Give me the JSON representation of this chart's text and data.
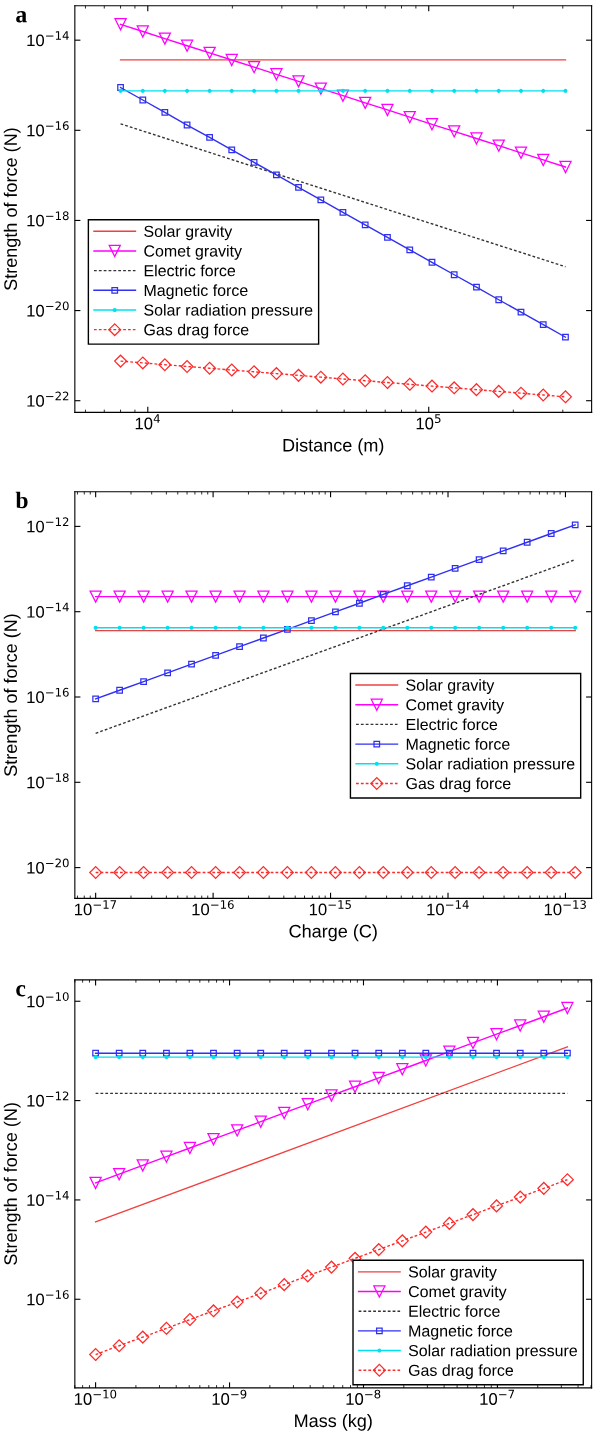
{
  "chart_data": [
    {
      "type": "line",
      "title": "a",
      "xlabel": "Distance (m)",
      "ylabel": "Strength of force (N)",
      "log": "xy",
      "legend": "lower left",
      "grid": false,
      "xlim": [
        5500,
        380000
      ],
      "ylim": [
        5.5e-23,
        5.8e-14
      ],
      "xticks": [
        {
          "value": 10000,
          "label": "10$^{4}$"
        },
        {
          "value": 100000,
          "label": "10$^{5}$"
        }
      ],
      "yticks": [
        {
          "value": 1e-22,
          "label": "10$^{−22}$"
        },
        {
          "value": 1e-20,
          "label": "10$^{−20}$"
        },
        {
          "value": 1e-18,
          "label": "10$^{−18}$"
        },
        {
          "value": 1e-16,
          "label": "10$^{−16}$"
        },
        {
          "value": 1e-14,
          "label": "10$^{−14}$"
        }
      ],
      "x": [
        8000,
        9600,
        11500,
        13800,
        16600,
        19900,
        23900,
        28700,
        34400,
        41300,
        49500,
        59400,
        71300,
        85600,
        102700,
        123200,
        147900,
        177500,
        213000,
        255600,
        306700
      ],
      "series": [
        {
          "name": "Solar gravity",
          "color": "#f04040",
          "marker": "none",
          "line_style": "solid",
          "x": [
            8000,
            306700
          ],
          "values": [
            3.66e-15,
            3.66e-15
          ]
        },
        {
          "name": "Comet gravity",
          "color": "#ff00ff",
          "marker": "triangle",
          "line_style": "solid",
          "values": [
            2.25e-14,
            1.56e-14,
            1.085e-14,
            7.53e-15,
            5.23e-15,
            3.63e-15,
            2.52e-15,
            1.75e-15,
            1.22e-15,
            8.44e-16,
            5.86e-16,
            4.07e-16,
            2.83e-16,
            1.96e-16,
            1.36e-16,
            9.47e-17,
            6.58e-17,
            4.57e-17,
            3.17e-17,
            2.2e-17,
            1.53e-17
          ]
        },
        {
          "name": "Electric force",
          "color": "#333333",
          "marker": "none",
          "line_style": "dotted",
          "x": [
            8000,
            306700
          ],
          "values": [
            1.39e-16,
            9.4e-20
          ]
        },
        {
          "name": "Magnetic force",
          "color": "#3030f0",
          "marker": "square",
          "line_style": "solid",
          "values": [
            8.9e-16,
            4.7e-16,
            2.49e-16,
            1.31e-16,
            6.94e-17,
            3.67e-17,
            1.94e-17,
            1.025e-17,
            5.42e-18,
            2.86e-18,
            1.51e-18,
            7.99e-19,
            4.22e-19,
            2.23e-19,
            1.18e-19,
            6.24e-20,
            3.3e-20,
            1.74e-20,
            9.21e-21,
            4.87e-21,
            2.57e-21
          ]
        },
        {
          "name": "Solar radiation pressure",
          "color": "#00e0f0",
          "marker": "circle",
          "line_style": "solid",
          "values": [
            7.5e-16,
            7.5e-16,
            7.5e-16,
            7.5e-16,
            7.5e-16,
            7.5e-16,
            7.5e-16,
            7.5e-16,
            7.5e-16,
            7.5e-16,
            7.5e-16,
            7.5e-16,
            7.5e-16,
            7.5e-16,
            7.5e-16,
            7.5e-16,
            7.5e-16,
            7.5e-16,
            7.5e-16,
            7.5e-16,
            7.5e-16
          ]
        },
        {
          "name": "Gas drag force",
          "color": "#ff2a2a",
          "marker": "diamond",
          "line_style": "dotted",
          "values": [
            7.56e-22,
            6.9e-22,
            6.3e-22,
            5.75e-22,
            5.25e-22,
            4.79e-22,
            4.38e-22,
            4e-22,
            3.65e-22,
            3.33e-22,
            3.04e-22,
            2.78e-22,
            2.53e-22,
            2.31e-22,
            2.11e-22,
            1.93e-22,
            1.76e-22,
            1.61e-22,
            1.47e-22,
            1.34e-22,
            1.22e-22
          ]
        }
      ]
    },
    {
      "type": "line",
      "title": "b",
      "xlabel": "Charge (C)",
      "ylabel": "Strength of force (N)",
      "log": "xy",
      "legend": "right",
      "grid": false,
      "xlim": [
        6.65e-18,
        1.67e-13
      ],
      "ylim": [
        1.9e-21,
        6.5e-12
      ],
      "xticks": [
        {
          "value": 1e-17,
          "label": "10$^{−17}$"
        },
        {
          "value": 1e-16,
          "label": "10$^{−16}$"
        },
        {
          "value": 1e-15,
          "label": "10$^{−15}$"
        },
        {
          "value": 1e-14,
          "label": "10$^{−14}$"
        },
        {
          "value": 1e-13,
          "label": "10$^{−13}$"
        }
      ],
      "yticks": [
        {
          "value": 1e-20,
          "label": "10$^{−20}$"
        },
        {
          "value": 1e-18,
          "label": "10$^{−18}$"
        },
        {
          "value": 1e-16,
          "label": "10$^{−16}$"
        },
        {
          "value": 1e-14,
          "label": "10$^{−14}$"
        },
        {
          "value": 1e-12,
          "label": "10$^{−12}$"
        }
      ],
      "x": [
        1e-17,
        1.6e-17,
        2.56e-17,
        4.1e-17,
        6.55e-17,
        1.05e-16,
        1.68e-16,
        2.68e-16,
        4.29e-16,
        6.87e-16,
        1.1e-15,
        1.76e-15,
        2.81e-15,
        4.5e-15,
        7.2e-15,
        1.15e-14,
        1.84e-14,
        2.95e-14,
        4.72e-14,
        7.56e-14,
        1.21e-13
      ],
      "series": [
        {
          "name": "Solar gravity",
          "color": "#f04040",
          "marker": "none",
          "line_style": "solid",
          "x": [
            1e-17,
            1.21e-13
          ],
          "values": [
            3.6e-15,
            3.6e-15
          ]
        },
        {
          "name": "Comet gravity",
          "color": "#ff00ff",
          "marker": "triangle",
          "line_style": "solid",
          "values": [
            2.26e-14,
            2.26e-14,
            2.26e-14,
            2.26e-14,
            2.26e-14,
            2.26e-14,
            2.26e-14,
            2.26e-14,
            2.26e-14,
            2.26e-14,
            2.26e-14,
            2.26e-14,
            2.26e-14,
            2.26e-14,
            2.26e-14,
            2.26e-14,
            2.26e-14,
            2.26e-14,
            2.26e-14,
            2.26e-14,
            2.26e-14
          ]
        },
        {
          "name": "Electric force",
          "color": "#333333",
          "marker": "none",
          "line_style": "dotted",
          "x": [
            1e-17,
            1.21e-13
          ],
          "values": [
            1.41e-17,
            1.66e-13
          ]
        },
        {
          "name": "Magnetic force",
          "color": "#3030f0",
          "marker": "square",
          "line_style": "solid",
          "values": [
            9e-17,
            1.44e-16,
            2.3e-16,
            3.69e-16,
            5.9e-16,
            9.44e-16,
            1.51e-15,
            2.42e-15,
            3.87e-15,
            6.19e-15,
            9.9e-15,
            1.58e-14,
            2.54e-14,
            4.06e-14,
            6.49e-14,
            1.04e-13,
            1.66e-13,
            2.66e-13,
            4.25e-13,
            6.81e-13,
            1.09e-12
          ]
        },
        {
          "name": "Solar radiation pressure",
          "color": "#00e0f0",
          "marker": "circle",
          "line_style": "solid",
          "values": [
            4.2e-15,
            4.2e-15,
            4.2e-15,
            4.2e-15,
            4.2e-15,
            4.2e-15,
            4.2e-15,
            4.2e-15,
            4.2e-15,
            4.2e-15,
            4.2e-15,
            4.2e-15,
            4.2e-15,
            4.2e-15,
            4.2e-15,
            4.2e-15,
            4.2e-15,
            4.2e-15,
            4.2e-15,
            4.2e-15,
            4.2e-15
          ]
        },
        {
          "name": "Gas drag force",
          "color": "#ff2a2a",
          "marker": "diamond",
          "line_style": "dotted",
          "values": [
            7.7e-21,
            7.7e-21,
            7.7e-21,
            7.7e-21,
            7.7e-21,
            7.7e-21,
            7.7e-21,
            7.7e-21,
            7.7e-21,
            7.7e-21,
            7.7e-21,
            7.7e-21,
            7.7e-21,
            7.7e-21,
            7.7e-21,
            7.7e-21,
            7.7e-21,
            7.7e-21,
            7.7e-21,
            7.7e-21,
            7.7e-21
          ]
        }
      ]
    },
    {
      "type": "line",
      "title": "c",
      "xlabel": "Mass (kg)",
      "ylabel": "Strength of force (N)",
      "log": "xy",
      "legend": "lower right",
      "grid": false,
      "xlim": [
        7e-11,
        5.05e-07
      ],
      "ylim": [
        1.64e-18,
        2.7e-10
      ],
      "xticks": [
        {
          "value": 1e-10,
          "label": "10$^{−10}$"
        },
        {
          "value": 1e-09,
          "label": "10$^{−9}$"
        },
        {
          "value": 1e-08,
          "label": "10$^{−8}$"
        },
        {
          "value": 1e-07,
          "label": "10$^{−7}$"
        }
      ],
      "yticks": [
        {
          "value": 1e-16,
          "label": "10$^{−16}$"
        },
        {
          "value": 1e-14,
          "label": "10$^{−14}$"
        },
        {
          "value": 1e-12,
          "label": "10$^{−12}$"
        },
        {
          "value": 1e-10,
          "label": "10$^{−10}$"
        }
      ],
      "x": [
        1e-10,
        1.5e-10,
        2.25e-10,
        3.38e-10,
        5.06e-10,
        7.59e-10,
        1.14e-09,
        1.71e-09,
        2.56e-09,
        3.84e-09,
        5.77e-09,
        8.65e-09,
        1.3e-08,
        1.95e-08,
        2.92e-08,
        4.38e-08,
        6.57e-08,
        9.85e-08,
        1.48e-07,
        2.22e-07,
        3.33e-07
      ],
      "series": [
        {
          "name": "Solar gravity",
          "color": "#f04040",
          "marker": "none",
          "line_style": "solid",
          "x": [
            1e-10,
            3.33e-07
          ],
          "values": [
            3.6e-15,
            1.21e-11
          ]
        },
        {
          "name": "Comet gravity",
          "color": "#ff00ff",
          "marker": "triangle",
          "line_style": "solid",
          "values": [
            2.2e-14,
            3.3e-14,
            4.95e-14,
            7.43e-14,
            1.11e-13,
            1.67e-13,
            2.51e-13,
            3.76e-13,
            5.64e-13,
            8.46e-13,
            1.27e-12,
            1.9e-12,
            2.86e-12,
            4.28e-12,
            6.42e-12,
            9.64e-12,
            1.45e-11,
            2.17e-11,
            3.25e-11,
            4.88e-11,
            7.32e-11
          ]
        },
        {
          "name": "Electric force",
          "color": "#333333",
          "marker": "none",
          "line_style": "dotted",
          "x": [
            1e-10,
            3.33e-07
          ],
          "values": [
            1.4e-12,
            1.4e-12
          ]
        },
        {
          "name": "Magnetic force",
          "color": "#3030f0",
          "marker": "square",
          "line_style": "solid",
          "values": [
            9e-12,
            9e-12,
            9e-12,
            9e-12,
            9e-12,
            9e-12,
            9e-12,
            9e-12,
            9e-12,
            9e-12,
            9e-12,
            9e-12,
            9e-12,
            9e-12,
            9e-12,
            9e-12,
            9e-12,
            9e-12,
            9e-12,
            9e-12,
            9e-12
          ]
        },
        {
          "name": "Solar radiation pressure",
          "color": "#00e0f0",
          "marker": "circle",
          "line_style": "solid",
          "values": [
            7.5e-12,
            7.5e-12,
            7.5e-12,
            7.5e-12,
            7.5e-12,
            7.5e-12,
            7.5e-12,
            7.5e-12,
            7.5e-12,
            7.5e-12,
            7.5e-12,
            7.5e-12,
            7.5e-12,
            7.5e-12,
            7.5e-12,
            7.5e-12,
            7.5e-12,
            7.5e-12,
            7.5e-12,
            7.5e-12,
            7.5e-12
          ]
        },
        {
          "name": "Gas drag force",
          "color": "#ff2a2a",
          "marker": "diamond",
          "line_style": "dotted",
          "values": [
            7.7e-18,
            1.16e-17,
            1.73e-17,
            2.6e-17,
            3.9e-17,
            5.85e-17,
            8.77e-17,
            1.32e-16,
            1.97e-16,
            2.96e-16,
            4.44e-16,
            6.66e-16,
            9.99e-16,
            1.5e-15,
            2.25e-15,
            3.37e-15,
            5.06e-15,
            7.59e-15,
            1.14e-14,
            1.71e-14,
            2.56e-14
          ]
        }
      ]
    }
  ]
}
